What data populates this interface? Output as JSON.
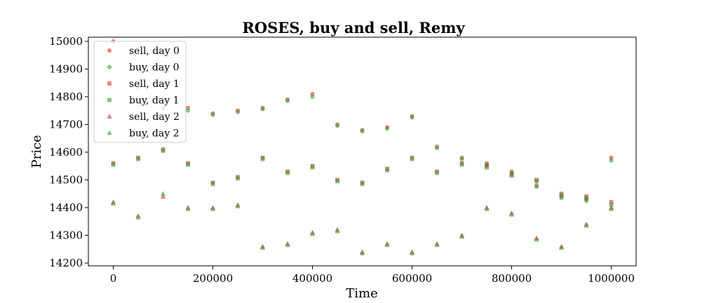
{
  "chart_data": {
    "type": "scatter",
    "title": "ROSES, buy and sell, Remy",
    "xlabel": "Time",
    "ylabel": "Price",
    "xlim": [
      -50000,
      1050000
    ],
    "ylim": [
      14190,
      15015
    ],
    "xticks": [
      0,
      200000,
      400000,
      600000,
      800000,
      1000000
    ],
    "xtick_labels": [
      "0",
      "200000",
      "400000",
      "600000",
      "800000",
      "1000000"
    ],
    "yticks": [
      14200,
      14300,
      14400,
      14500,
      14600,
      14700,
      14800,
      14900,
      15000
    ],
    "ytick_labels": [
      "14200",
      "14300",
      "14400",
      "14500",
      "14600",
      "14700",
      "14800",
      "14900",
      "15000"
    ],
    "grid": false,
    "legend_position": "top-left",
    "series": [
      {
        "name": "sell, day 0",
        "marker": "circle",
        "color": "#d62728",
        "x": [
          0,
          50000,
          100000,
          150000,
          200000,
          250000,
          300000,
          350000,
          400000,
          450000,
          500000,
          550000,
          600000,
          650000,
          700000,
          750000,
          800000,
          850000,
          900000,
          950000,
          1000000
        ],
        "y": [
          15000,
          14840,
          14760,
          14760,
          14740,
          14750,
          14760,
          14790,
          14810,
          14700,
          14680,
          14690,
          14730,
          14620,
          14580,
          14560,
          14530,
          14480,
          14440,
          14430,
          14580
        ]
      },
      {
        "name": "buy, day 0",
        "marker": "circle",
        "color": "#2ca02c",
        "x": [
          0,
          50000,
          100000,
          150000,
          200000,
          250000,
          300000,
          350000,
          400000,
          450000,
          500000,
          550000,
          600000,
          650000,
          700000,
          750000,
          800000,
          850000,
          900000,
          950000,
          1000000
        ],
        "y": [
          14995,
          14830,
          14755,
          14750,
          14735,
          14745,
          14755,
          14785,
          14800,
          14695,
          14675,
          14685,
          14725,
          14615,
          14575,
          14555,
          14525,
          14475,
          14435,
          14425,
          14570
        ]
      },
      {
        "name": "sell, day 1",
        "marker": "square",
        "color": "#d62728",
        "x": [
          0,
          50000,
          100000,
          150000,
          200000,
          250000,
          300000,
          350000,
          400000,
          450000,
          500000,
          550000,
          600000,
          650000,
          700000,
          750000,
          800000,
          850000,
          900000,
          950000,
          1000000
        ],
        "y": [
          14560,
          14580,
          14610,
          14560,
          14490,
          14510,
          14580,
          14530,
          14550,
          14500,
          14490,
          14540,
          14580,
          14530,
          14560,
          14550,
          14520,
          14500,
          14450,
          14440,
          14420
        ]
      },
      {
        "name": "buy, day 1",
        "marker": "square",
        "color": "#2ca02c",
        "x": [
          0,
          50000,
          100000,
          150000,
          200000,
          250000,
          300000,
          350000,
          400000,
          450000,
          500000,
          550000,
          600000,
          650000,
          700000,
          750000,
          800000,
          850000,
          900000,
          950000,
          1000000
        ],
        "y": [
          14555,
          14575,
          14605,
          14555,
          14485,
          14505,
          14575,
          14525,
          14545,
          14495,
          14485,
          14535,
          14575,
          14525,
          14555,
          14545,
          14515,
          14495,
          14445,
          14435,
          14410
        ]
      },
      {
        "name": "sell, day 2",
        "marker": "triangle",
        "color": "#d62728",
        "x": [
          0,
          50000,
          100000,
          150000,
          200000,
          250000,
          300000,
          350000,
          400000,
          450000,
          500000,
          550000,
          600000,
          650000,
          700000,
          750000,
          800000,
          850000,
          900000,
          950000,
          1000000
        ],
        "y": [
          14420,
          14370,
          14440,
          14400,
          14400,
          14410,
          14260,
          14270,
          14310,
          14320,
          14240,
          14270,
          14240,
          14270,
          14300,
          14400,
          14380,
          14290,
          14260,
          14340,
          14400
        ]
      },
      {
        "name": "buy, day 2",
        "marker": "triangle",
        "color": "#2ca02c",
        "x": [
          0,
          50000,
          100000,
          150000,
          200000,
          250000,
          300000,
          350000,
          400000,
          450000,
          500000,
          550000,
          600000,
          650000,
          700000,
          750000,
          800000,
          850000,
          900000,
          950000,
          1000000
        ],
        "y": [
          14415,
          14365,
          14450,
          14395,
          14395,
          14405,
          14255,
          14265,
          14305,
          14315,
          14235,
          14265,
          14235,
          14265,
          14295,
          14395,
          14375,
          14285,
          14255,
          14335,
          14395
        ]
      }
    ]
  }
}
